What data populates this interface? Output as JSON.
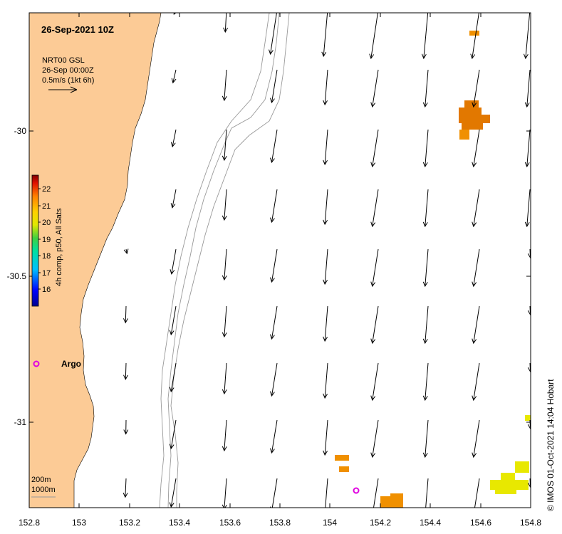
{
  "title": "26-Sep-2021 10Z",
  "vector_legend": {
    "line1": "NRT00 GSL",
    "line2": "26-Sep 00:00Z",
    "line3": "0.5m/s (1kt 6h)"
  },
  "colorbar": {
    "label": "4h comp, p50, All Sats",
    "ticks": [
      "16",
      "17",
      "18",
      "19",
      "20",
      "21",
      "22"
    ]
  },
  "x_ticks": [
    "152.8",
    "153",
    "153.2",
    "153.4",
    "153.6",
    "153.8",
    "154",
    "154.2",
    "154.4",
    "154.6",
    "154.8"
  ],
  "y_ticks": [
    "-30",
    "-30.5",
    "-31"
  ],
  "argo": {
    "label": "Argo"
  },
  "isobaths": {
    "line1": "200m",
    "line2": "1000m"
  },
  "credit": "© IMOS 01-Oct-2021 14:04 Hobart",
  "colors": {
    "land": "#FCCB96",
    "argo": "#E000E0",
    "sst_orange_dark": "#E27800",
    "sst_orange": "#F09000",
    "sst_yellow": "#E8E800"
  }
}
